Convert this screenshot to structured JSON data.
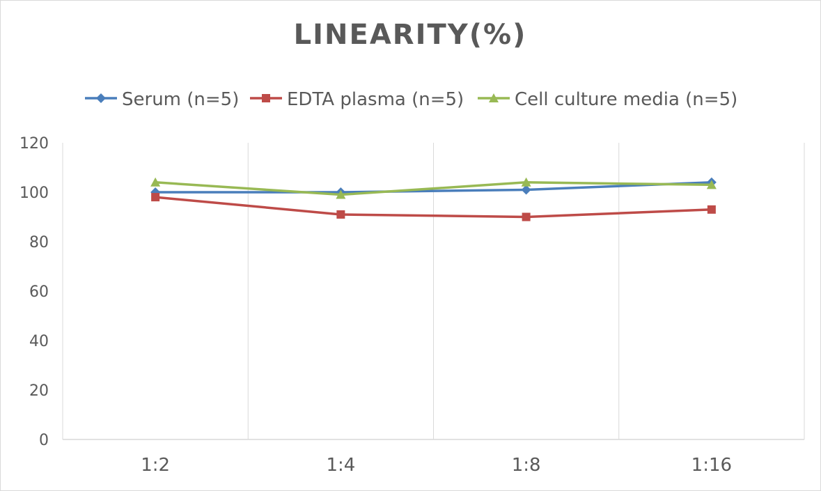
{
  "chart_data": {
    "type": "line",
    "title": "LINEARITY(%)",
    "xlabel": "",
    "ylabel": "",
    "categories": [
      "1:2",
      "1:4",
      "1:8",
      "1:16"
    ],
    "ylim": [
      0,
      120
    ],
    "yticks": [
      "0",
      "20",
      "40",
      "60",
      "80",
      "100",
      "120"
    ],
    "grid": "vertical",
    "legend": "top",
    "series": [
      {
        "name": "Serum (n=5)",
        "values": [
          100,
          100,
          101,
          104
        ],
        "color": "#4a7ebb",
        "marker": "diamond"
      },
      {
        "name": "EDTA plasma (n=5)",
        "values": [
          98,
          91,
          90,
          93
        ],
        "color": "#be4b48",
        "marker": "square"
      },
      {
        "name": "Cell culture media (n=5)",
        "values": [
          104,
          99,
          104,
          103
        ],
        "color": "#98b954",
        "marker": "triangle"
      }
    ]
  }
}
